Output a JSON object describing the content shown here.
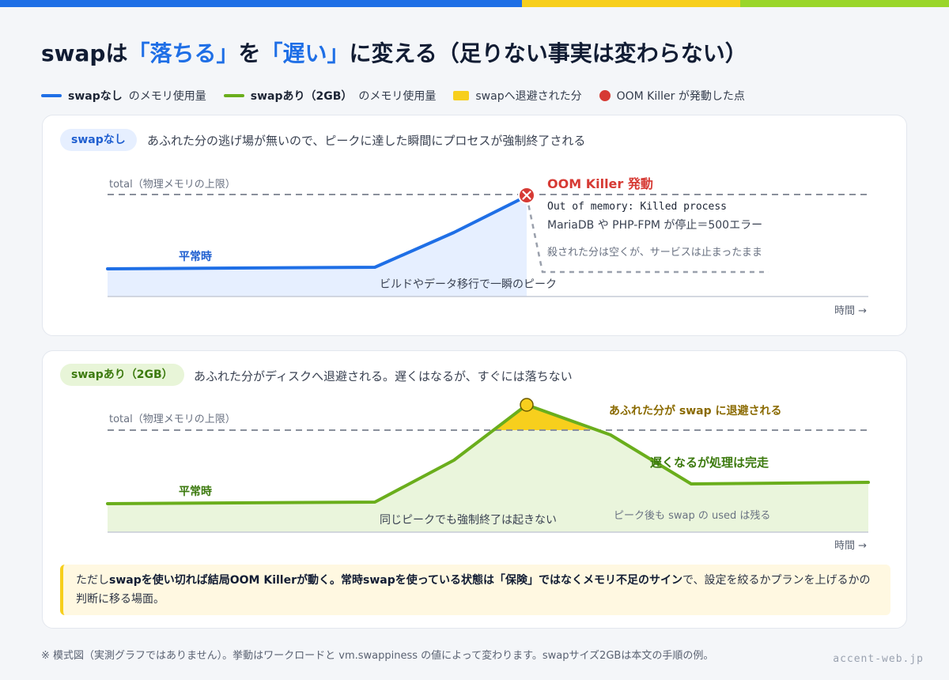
{
  "title": {
    "part1": "swapは",
    "highlight1": "「落ちる」",
    "part2": "を",
    "highlight2": "「遅い」",
    "part3": "に変える（足りない事実は変わらない）"
  },
  "legend": {
    "no_swap_bold": "swapなし",
    "no_swap_text": "のメモリ使用量",
    "with_swap_bold": "swapあり（2GB）",
    "with_swap_text": "のメモリ使用量",
    "swapped": "swapへ退避された分",
    "oom": "OOM Killer が発動した点"
  },
  "colors": {
    "blue": "#1f6fe6",
    "green": "#6aae1c",
    "yellow": "#f7cf1d",
    "red": "#d63a34"
  },
  "panel_no_swap": {
    "badge": "swapなし",
    "description": "あふれた分の逃げ場が無いので、ピークに達した瞬間にプロセスが強制終了される",
    "total_label": "total（物理メモリの上限）",
    "normal_label": "平常時",
    "peak_label": "ビルドやデータ移行で一瞬のピーク",
    "oom_title": "OOM Killer 発動",
    "oom_log": "Out of memory: Killed process",
    "oom_effect": "MariaDB や PHP-FPM が停止＝500エラー",
    "after_label": "殺された分は空くが、サービスは止まったまま",
    "time_label": "時間 →"
  },
  "panel_with_swap": {
    "badge": "swapあり（2GB）",
    "description": "あふれた分がディスクへ退避される。遅くはなるが、すぐには落ちない",
    "total_label": "total（物理メモリの上限）",
    "normal_label": "平常時",
    "peak_label": "同じピークでも強制終了は起きない",
    "swapped_label": "あふれた分が swap に退避される",
    "slow_label": "遅くなるが処理は完走",
    "after_label": "ピーク後も swap の used は残る",
    "time_label": "時間 →"
  },
  "note": {
    "prefix": "ただし",
    "bold1": "swapを使い切れば結局OOM Killerが動く。常時swapを使っている状態は「保険」ではなくメモリ不足のサイン",
    "suffix": "で、設定を絞るかプランを上げるかの判断に移る場面。"
  },
  "footnote": "※ 模式図（実測グラフではありません）。挙動はワークロードと vm.swappiness の値によって変わります。swapサイズ2GBは本文の手順の例。",
  "brand": "accent-web.jp"
}
